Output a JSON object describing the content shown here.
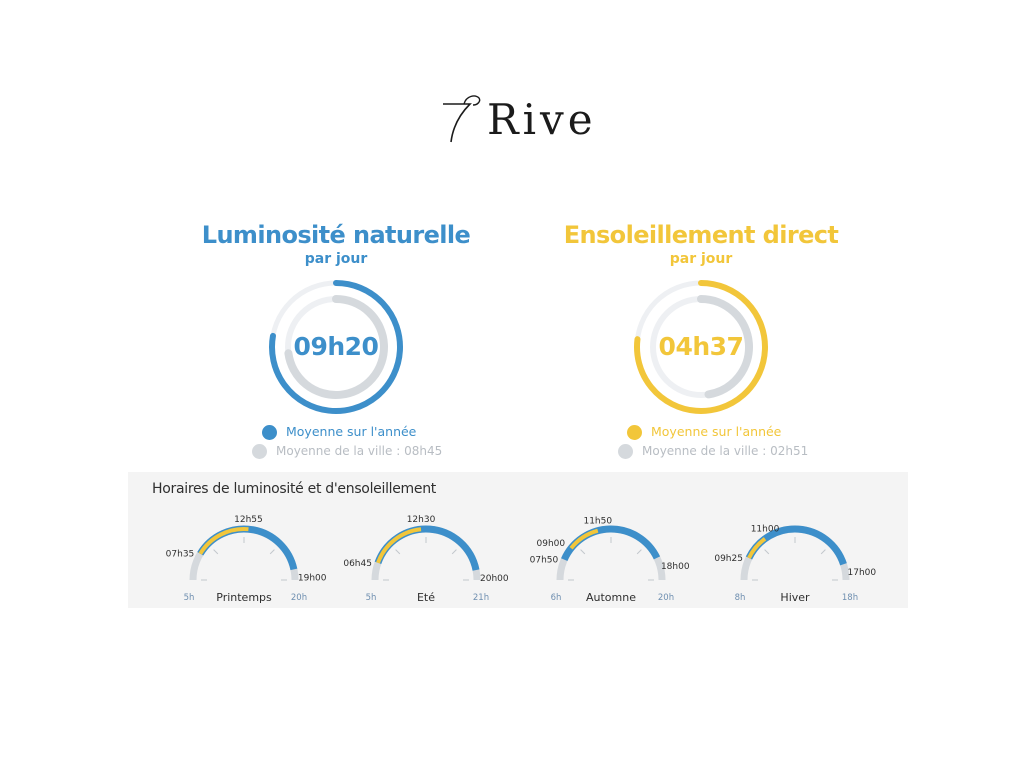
{
  "brand": {
    "logo_text": "Rive"
  },
  "luminosity": {
    "title": "Luminosité naturelle",
    "subtitle": "par jour",
    "value": "09h20",
    "year_legend": "Moyenne sur l'année",
    "city_legend": "Moyenne de la ville : 08h45"
  },
  "sunshine": {
    "title": "Ensoleillement direct",
    "subtitle": "par jour",
    "value": "04h37",
    "year_legend": "Moyenne sur l'année",
    "city_legend": "Moyenne de la ville : 02h51"
  },
  "schedule": {
    "title": "Horaires de luminosité et d'ensoleillement"
  },
  "colors": {
    "blue": "#3d8fca",
    "yellow": "#f2c63a",
    "grey": "#d5d9dd",
    "track": "#eef0f3"
  },
  "chart_data": [
    {
      "type": "ring",
      "title": "Luminosité naturelle",
      "subtitle": "par jour",
      "series": [
        {
          "name": "Moyenne sur l'année",
          "value": "09h20",
          "hours": 9.333
        },
        {
          "name": "Moyenne de la ville",
          "value": "08h45",
          "hours": 8.75
        }
      ],
      "scale_max_hours": 12
    },
    {
      "type": "ring",
      "title": "Ensoleillement direct",
      "subtitle": "par jour",
      "series": [
        {
          "name": "Moyenne sur l'année",
          "value": "04h37",
          "hours": 4.617
        },
        {
          "name": "Moyenne de la ville",
          "value": "02h51",
          "hours": 2.85
        }
      ],
      "scale_max_hours": 6
    },
    {
      "type": "gauge",
      "title": "Horaires de luminosité et d'ensoleillement",
      "seasons": [
        {
          "name": "Printemps",
          "min": 5,
          "max": 20,
          "min_label": "5h",
          "max_label": "20h",
          "light_start": 7.583,
          "light_start_label": "07h35",
          "sun_end": 12.917,
          "sun_end_label": "12h55",
          "light_end": 19.0,
          "light_end_label": "19h00"
        },
        {
          "name": "Eté",
          "min": 5,
          "max": 21,
          "min_label": "5h",
          "max_label": "21h",
          "light_start": 6.75,
          "light_start_label": "06h45",
          "sun_end": 12.5,
          "sun_end_label": "12h30",
          "light_end": 20.0,
          "light_end_label": "20h00"
        },
        {
          "name": "Automne",
          "min": 6,
          "max": 20,
          "min_label": "6h",
          "max_label": "20h",
          "light_start": 7.833,
          "light_start_label": "07h50",
          "sun_start": 9.0,
          "sun_start_label": "09h00",
          "sun_end": 11.833,
          "sun_end_label": "11h50",
          "light_end": 18.0,
          "light_end_label": "18h00"
        },
        {
          "name": "Hiver",
          "min": 8,
          "max": 18,
          "min_label": "8h",
          "max_label": "18h",
          "light_start": 9.417,
          "light_start_label": "09h25",
          "sun_end": 11.0,
          "sun_end_label": "11h00",
          "light_end": 17.0,
          "light_end_label": "17h00"
        }
      ]
    }
  ]
}
